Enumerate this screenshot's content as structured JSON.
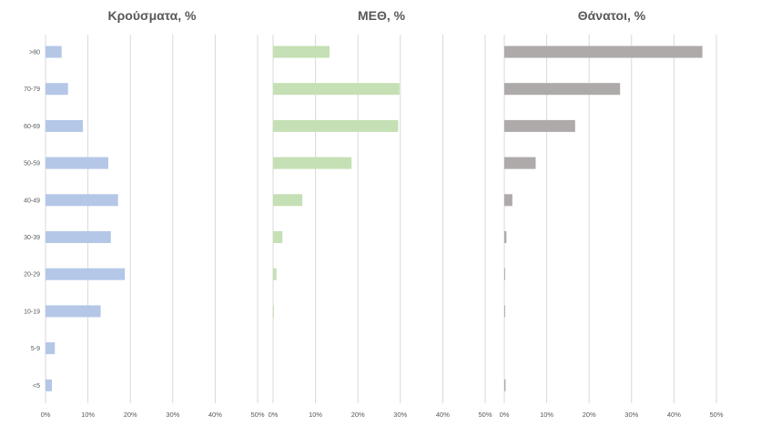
{
  "chart_data": {
    "type": "bar",
    "orientation": "horizontal",
    "categories": [
      "<5",
      "5-9",
      "10-19",
      "20-29",
      "30-39",
      "40-49",
      "50-59",
      "60-69",
      "70-79",
      ">80"
    ],
    "category_labels": [
      "<5",
      "5-9",
      "10-19",
      "20-29",
      "30-39",
      "40-49",
      "50-59",
      "60-69",
      "70-79",
      ">80"
    ],
    "xlim": [
      0,
      50
    ],
    "x_ticks": [
      "0%",
      "10%",
      "20%",
      "30%",
      "40%",
      "50%"
    ],
    "grid": "vertical",
    "legend": "none",
    "panels": [
      {
        "title": "Κρούσματα, %",
        "color": "#b4c7e7",
        "values": [
          1.5,
          2.2,
          13.0,
          18.7,
          15.4,
          17.1,
          14.8,
          8.8,
          5.3,
          3.8
        ]
      },
      {
        "title": "ΜΕΘ, %",
        "color": "#c5e0b4",
        "values": [
          0.0,
          0.0,
          0.2,
          0.8,
          2.2,
          6.9,
          18.5,
          29.5,
          29.8,
          13.3
        ]
      },
      {
        "title": "Θάνατοι, %",
        "color": "#aeaaaa",
        "values": [
          0.3,
          0.0,
          0.2,
          0.2,
          0.5,
          1.9,
          7.4,
          16.7,
          27.3,
          46.7
        ]
      }
    ]
  }
}
